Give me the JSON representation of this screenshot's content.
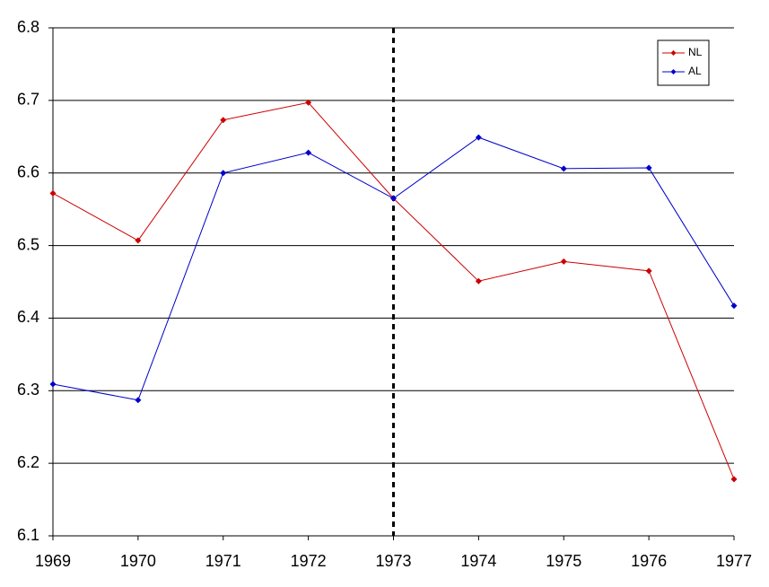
{
  "chart_data": {
    "type": "line",
    "x": [
      1969,
      1970,
      1971,
      1972,
      1973,
      1974,
      1975,
      1976,
      1977
    ],
    "series": [
      {
        "name": "NL",
        "color": "#cc0000",
        "values": [
          6.572,
          6.507,
          6.673,
          6.697,
          6.565,
          6.451,
          6.478,
          6.465,
          6.178
        ]
      },
      {
        "name": "AL",
        "color": "#0000cc",
        "values": [
          6.309,
          6.287,
          6.6,
          6.628,
          6.565,
          6.649,
          6.606,
          6.607,
          6.417
        ]
      }
    ],
    "xlim": [
      1969,
      1977
    ],
    "xticks": [
      1969,
      1970,
      1971,
      1972,
      1973,
      1974,
      1975,
      1976,
      1977
    ],
    "ylim": [
      6.1,
      6.8
    ],
    "yticks": [
      6.1,
      6.2,
      6.3,
      6.4,
      6.5,
      6.6,
      6.7,
      6.8
    ],
    "grid": true,
    "legend": "upper right",
    "vline_x": 1973
  }
}
